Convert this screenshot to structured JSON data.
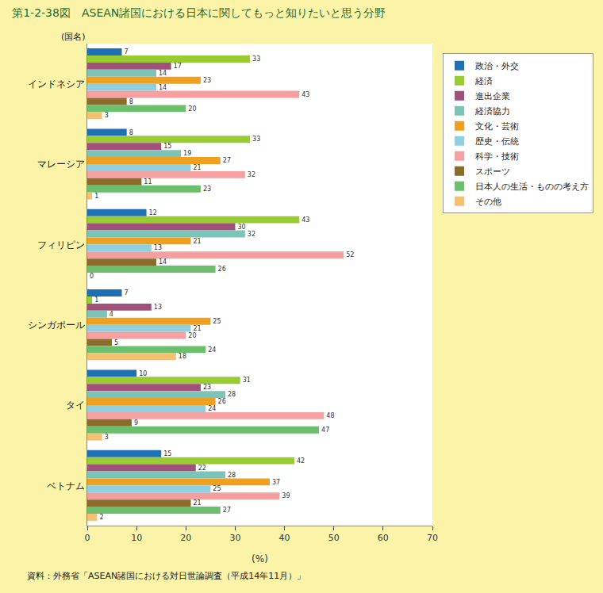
{
  "chart_data": {
    "type": "bar",
    "orientation": "horizontal",
    "title": "第1-2-38図　ASEAN諸国における日本に関してもっと知りたいと思う分野",
    "xlabel": "(%)",
    "ylabel": "(国名)",
    "annotations": [
      "資料：外務省「ASEAN諸国における対日世論調査（平成14年11月）」"
    ],
    "categories": [
      "インドネシア",
      "マレーシア",
      "フィリピン",
      "シンガポール",
      "タイ",
      "ベトナム"
    ],
    "series": [
      {
        "name": "政治・外交",
        "color": "#1f6fb4",
        "values": [
          7,
          8,
          12,
          7,
          10,
          15
        ]
      },
      {
        "name": "経済",
        "color": "#99cc33",
        "values": [
          33,
          33,
          43,
          1,
          31,
          42
        ]
      },
      {
        "name": "進出企業",
        "color": "#a0507a",
        "values": [
          17,
          15,
          30,
          13,
          23,
          22
        ]
      },
      {
        "name": "経済協力",
        "color": "#7cc4b8",
        "values": [
          14,
          19,
          32,
          4,
          28,
          28
        ]
      },
      {
        "name": "文化・芸術",
        "color": "#f0a020",
        "values": [
          23,
          27,
          21,
          25,
          26,
          37
        ]
      },
      {
        "name": "歴史・伝統",
        "color": "#8fd0e0",
        "values": [
          14,
          21,
          13,
          21,
          24,
          25
        ]
      },
      {
        "name": "科学・技術",
        "color": "#f4a0a0",
        "values": [
          43,
          32,
          52,
          20,
          48,
          39
        ]
      },
      {
        "name": "スポーツ",
        "color": "#8a6d2a",
        "values": [
          8,
          11,
          14,
          5,
          9,
          21
        ]
      },
      {
        "name": "日本人の生活・ものの考え方",
        "color": "#6cbf6c",
        "values": [
          20,
          23,
          26,
          24,
          47,
          27
        ]
      },
      {
        "name": "その他",
        "color": "#f5c070",
        "values": [
          3,
          1,
          0,
          18,
          3,
          2
        ]
      }
    ],
    "xlim": [
      0,
      70
    ],
    "xticks": [
      0,
      10,
      20,
      30,
      40,
      50,
      60,
      70
    ],
    "grid": false,
    "legend": "right",
    "data_labels": true
  }
}
